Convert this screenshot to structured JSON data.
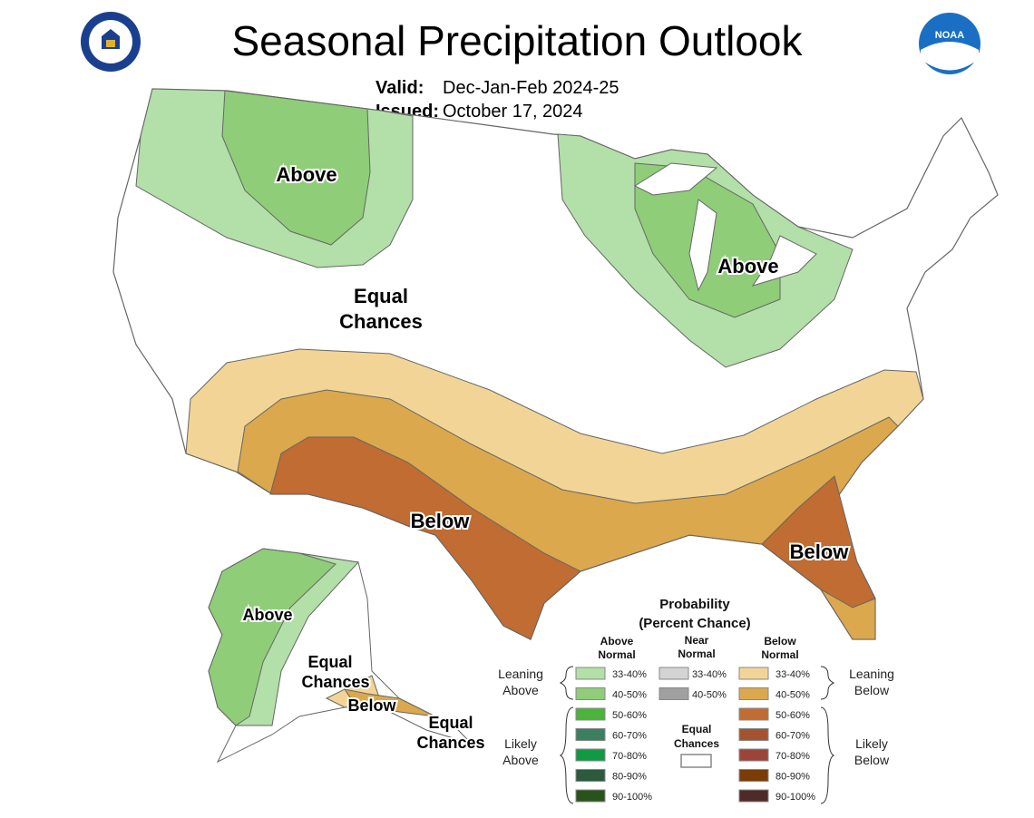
{
  "header": {
    "title": "Seasonal Precipitation Outlook",
    "valid_label": "Valid:",
    "valid_value": "Dec-Jan-Feb 2024-25",
    "issued_label": "Issued:",
    "issued_value": "October 17, 2024",
    "logo_left": "Department of Commerce seal",
    "logo_right": "NOAA"
  },
  "map_labels": {
    "northwest": "Above",
    "great_lakes": "Above",
    "center_line1": "Equal",
    "center_line2": "Chances",
    "south_central": "Below",
    "southeast": "Below",
    "alaska_north": "Above",
    "alaska_center_line1": "Equal",
    "alaska_center_line2": "Chances",
    "alaska_south": "Below",
    "alaska_se_line1": "Equal",
    "alaska_se_line2": "Chances"
  },
  "colors": {
    "above_33_40": "#b3dfa8",
    "above_40_50": "#8fcd79",
    "below_33_40": "#f2d596",
    "below_40_50": "#dba84e",
    "below_50_60": "#c06c32",
    "equal_chances": "#ffffff",
    "border": "#777777"
  },
  "legend": {
    "title_line1": "Probability",
    "title_line2": "(Percent Chance)",
    "col_above_1": "Above",
    "col_above_2": "Normal",
    "col_near_1": "Near",
    "col_near_2": "Normal",
    "col_below_1": "Below",
    "col_below_2": "Normal",
    "leaning_above_1": "Leaning",
    "leaning_above_2": "Above",
    "likely_above_1": "Likely",
    "likely_above_2": "Above",
    "leaning_below_1": "Leaning",
    "leaning_below_2": "Below",
    "likely_below_1": "Likely",
    "likely_below_2": "Below",
    "equal_1": "Equal",
    "equal_2": "Chances",
    "above": [
      {
        "label": "33-40%",
        "color": "#b3dfa8"
      },
      {
        "label": "40-50%",
        "color": "#8fcd79"
      },
      {
        "label": "50-60%",
        "color": "#4cb33c"
      },
      {
        "label": "60-70%",
        "color": "#3a7f5e"
      },
      {
        "label": "70-80%",
        "color": "#119a44"
      },
      {
        "label": "80-90%",
        "color": "#2d5a3c"
      },
      {
        "label": "90-100%",
        "color": "#2a531c"
      }
    ],
    "near": [
      {
        "label": "33-40%",
        "color": "#d4d4d4"
      },
      {
        "label": "40-50%",
        "color": "#a0a0a0"
      }
    ],
    "below": [
      {
        "label": "33-40%",
        "color": "#f2d596"
      },
      {
        "label": "40-50%",
        "color": "#dba84e"
      },
      {
        "label": "50-60%",
        "color": "#c06c32"
      },
      {
        "label": "60-70%",
        "color": "#a5532f"
      },
      {
        "label": "70-80%",
        "color": "#9b443a"
      },
      {
        "label": "80-90%",
        "color": "#7a3d07"
      },
      {
        "label": "90-100%",
        "color": "#4e2a28"
      }
    ]
  }
}
